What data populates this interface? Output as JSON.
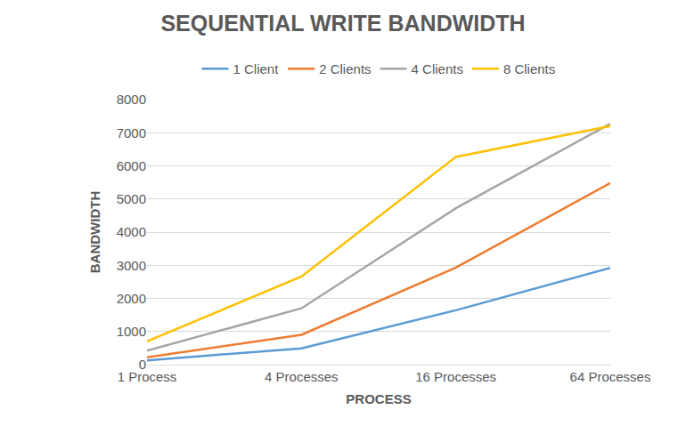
{
  "chart_data": {
    "type": "line",
    "title": "SEQUENTIAL WRITE BANDWIDTH",
    "x_label": "PROCESS",
    "y_label": "BANDWIDTH",
    "categories": [
      "1 Process",
      "4 Processes",
      "16 Processes",
      "64 Processes"
    ],
    "series": [
      {
        "name": "1 Client",
        "color": "#5b9bd5",
        "values": [
          130,
          490,
          1640,
          2920
        ]
      },
      {
        "name": "2 Clients",
        "color": "#ed7d31",
        "values": [
          220,
          900,
          2930,
          5480
        ]
      },
      {
        "name": "4 Clients",
        "color": "#a5a5a5",
        "values": [
          420,
          1700,
          4720,
          7270
        ]
      },
      {
        "name": "8 Clients",
        "color": "#ffc000",
        "values": [
          700,
          2660,
          6270,
          7200
        ]
      }
    ],
    "ylim": [
      0,
      8000
    ],
    "yticks": [
      0,
      1000,
      2000,
      3000,
      4000,
      5000,
      6000,
      7000,
      8000
    ],
    "grid": true,
    "legend": "top"
  }
}
